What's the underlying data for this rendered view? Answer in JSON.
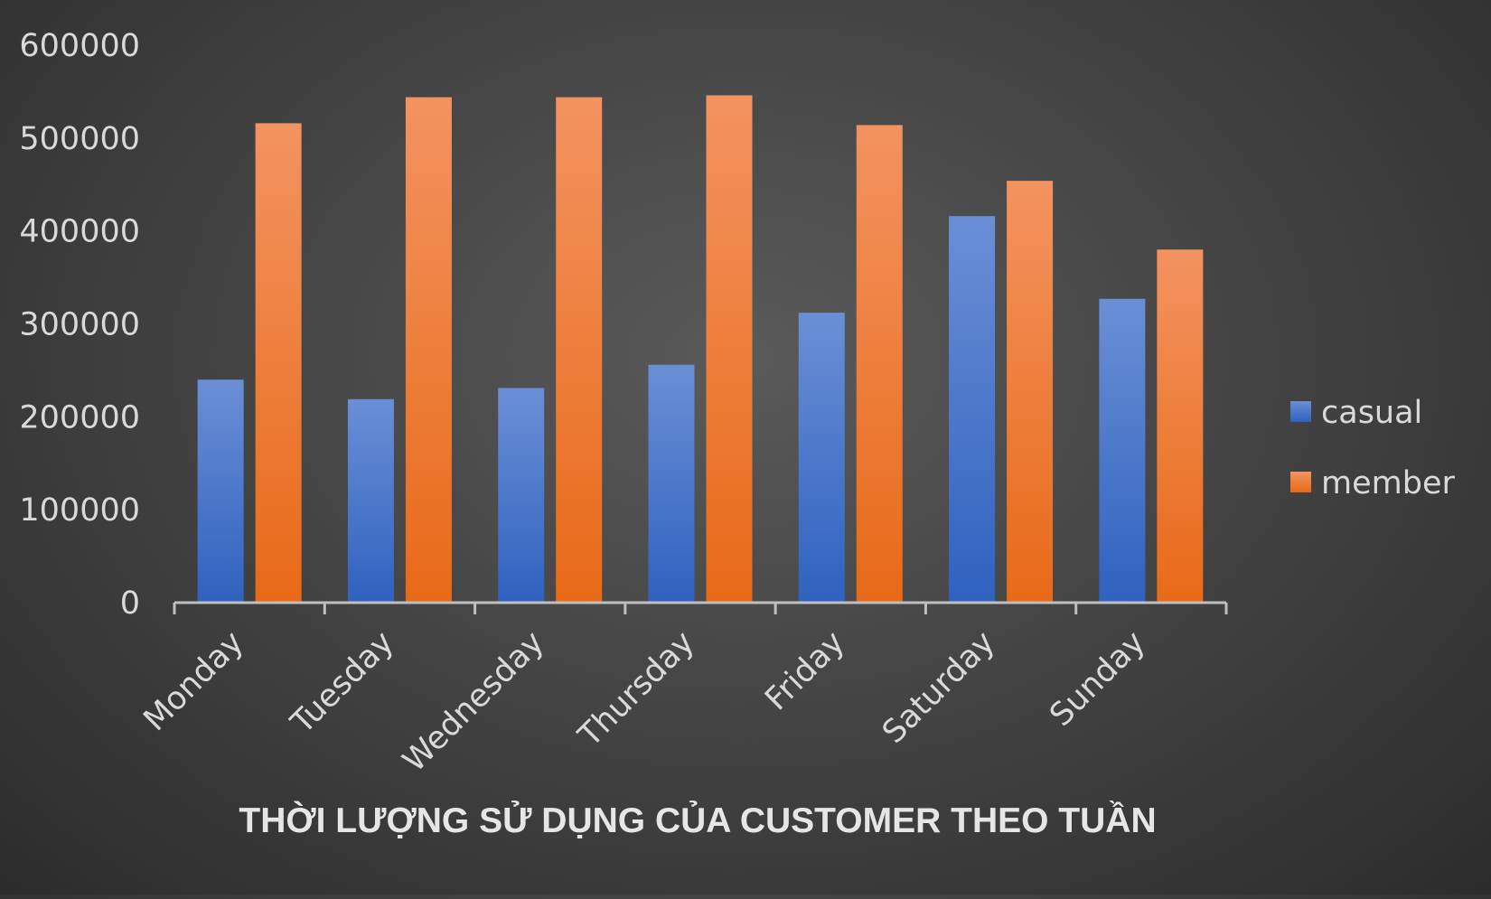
{
  "chart_data": {
    "type": "bar",
    "title": "THỜI LƯỢNG SỬ DỤNG CỦA CUSTOMER THEO TUẦN",
    "xlabel": "",
    "ylabel": "",
    "categories": [
      "Monday",
      "Tuesday",
      "Wednesday",
      "Thursday",
      "Friday",
      "Saturday",
      "Sunday"
    ],
    "series": [
      {
        "name": "casual",
        "color": "#4472C4",
        "values": [
          240000,
          219000,
          231000,
          256000,
          312000,
          416000,
          327000
        ]
      },
      {
        "name": "member",
        "color": "#ED7D31",
        "values": [
          516000,
          544000,
          544000,
          546000,
          514000,
          454000,
          380000
        ]
      }
    ],
    "ylim": [
      0,
      600000
    ],
    "yticks": [
      "0",
      "100000",
      "200000",
      "300000",
      "400000",
      "500000",
      "600000"
    ],
    "grid": false,
    "legend_position": "right",
    "background": "#444444"
  }
}
